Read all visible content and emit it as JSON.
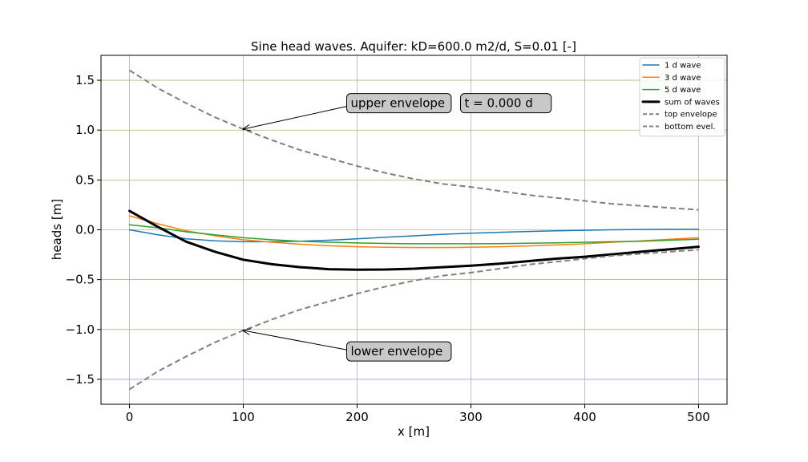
{
  "chart_data": {
    "type": "line",
    "title": "Sine head waves. Aquifer: kD=600.0 m2/d, S=0.01 [-]",
    "xlabel": "x [m]",
    "ylabel": "heads [m]",
    "xlim": [
      -25,
      525
    ],
    "ylim": [
      -1.75,
      1.75
    ],
    "xticks": [
      0,
      100,
      200,
      300,
      400,
      500
    ],
    "yticks": [
      -1.5,
      -1.0,
      -0.5,
      0.0,
      0.5,
      1.0,
      1.5
    ],
    "xtick_labels": [
      "0",
      "100",
      "200",
      "300",
      "400",
      "500"
    ],
    "ytick_labels": [
      "−1.5",
      "−1.0",
      "−0.5",
      "0.0",
      "0.5",
      "1.0",
      "1.5"
    ],
    "grid": true,
    "legend_position": "top-right",
    "x": [
      0,
      25,
      50,
      75,
      100,
      125,
      150,
      175,
      200,
      225,
      250,
      275,
      300,
      325,
      350,
      375,
      400,
      425,
      450,
      475,
      500
    ],
    "series": [
      {
        "name": "1 d wave",
        "color": "#1f77b4",
        "style": "solid",
        "values": [
          0.0,
          -0.05,
          -0.09,
          -0.11,
          -0.12,
          -0.12,
          -0.115,
          -0.105,
          -0.09,
          -0.075,
          -0.06,
          -0.045,
          -0.035,
          -0.025,
          -0.017,
          -0.01,
          -0.005,
          0.0,
          0.003,
          0.005,
          0.005
        ]
      },
      {
        "name": "3 d wave",
        "color": "#ff7f0e",
        "style": "solid",
        "values": [
          0.14,
          0.06,
          -0.01,
          -0.06,
          -0.1,
          -0.125,
          -0.145,
          -0.16,
          -0.17,
          -0.175,
          -0.178,
          -0.178,
          -0.175,
          -0.17,
          -0.162,
          -0.152,
          -0.14,
          -0.125,
          -0.11,
          -0.095,
          -0.08
        ]
      },
      {
        "name": "5 d wave",
        "color": "#2ca02c",
        "style": "solid",
        "values": [
          0.05,
          0.02,
          -0.02,
          -0.05,
          -0.08,
          -0.1,
          -0.115,
          -0.125,
          -0.132,
          -0.137,
          -0.14,
          -0.14,
          -0.14,
          -0.138,
          -0.135,
          -0.13,
          -0.125,
          -0.12,
          -0.115,
          -0.105,
          -0.095
        ]
      },
      {
        "name": "sum of waves",
        "color": "#000000",
        "style": "thick",
        "values": [
          0.19,
          0.03,
          -0.12,
          -0.22,
          -0.3,
          -0.345,
          -0.375,
          -0.395,
          -0.4,
          -0.398,
          -0.39,
          -0.375,
          -0.36,
          -0.34,
          -0.315,
          -0.29,
          -0.27,
          -0.245,
          -0.22,
          -0.195,
          -0.17
        ]
      },
      {
        "name": "top envelope",
        "color": "#808080",
        "style": "dashed",
        "values": [
          1.6,
          1.42,
          1.27,
          1.13,
          1.01,
          0.9,
          0.8,
          0.72,
          0.64,
          0.57,
          0.51,
          0.46,
          0.43,
          0.39,
          0.35,
          0.32,
          0.29,
          0.26,
          0.24,
          0.22,
          0.2
        ]
      },
      {
        "name": "bottom evel.",
        "color": "#808080",
        "style": "dashed",
        "values": [
          -1.6,
          -1.42,
          -1.27,
          -1.13,
          -1.01,
          -0.9,
          -0.8,
          -0.72,
          -0.64,
          -0.57,
          -0.51,
          -0.46,
          -0.43,
          -0.39,
          -0.35,
          -0.32,
          -0.29,
          -0.26,
          -0.24,
          -0.22,
          -0.2
        ]
      }
    ],
    "annotations": [
      {
        "name": "upper-envelope",
        "text": "upper envelope",
        "x": 200,
        "y": 1.27,
        "target_x": 100,
        "target_y": 1.01
      },
      {
        "name": "lower-envelope",
        "text": "lower envelope",
        "x": 200,
        "y": -1.22,
        "target_x": 100,
        "target_y": -1.01
      },
      {
        "name": "time",
        "text": "t =  0.000 d",
        "x": 300,
        "y": 1.27
      }
    ]
  }
}
